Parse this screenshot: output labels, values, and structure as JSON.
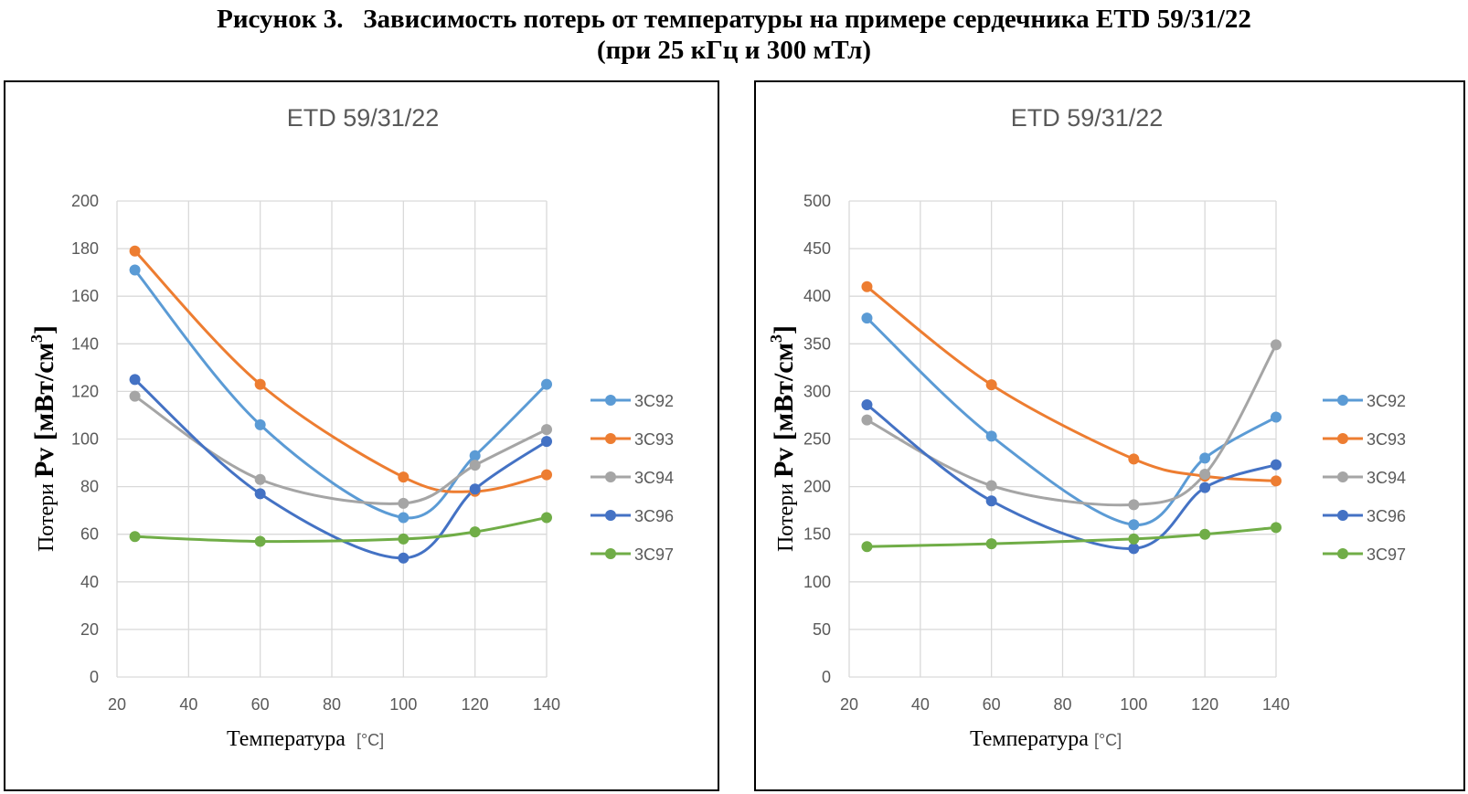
{
  "figure": {
    "title_line1": "Рисунок 3.   Зависимость потерь от температуры на примере сердечника ETD 59/31/22",
    "title_line2": "(при 25 кГц и 300 мТл)"
  },
  "chart_data": [
    {
      "type": "line",
      "title": "ETD 59/31/22",
      "xlabel_prefix": "Температура ",
      "xlabel_unit": "[°C]",
      "ylabel_small": "Потери",
      "ylabel_big": "Pv [мВт/см",
      "ylabel_sup": "3",
      "ylabel_end": "]",
      "xlim": [
        20,
        140
      ],
      "ylim": [
        0,
        200
      ],
      "xticks": [
        "20",
        "40",
        "60",
        "80",
        "100",
        "120",
        "140"
      ],
      "yticks": [
        "0",
        "20",
        "40",
        "60",
        "80",
        "100",
        "120",
        "140",
        "160",
        "180",
        "200"
      ],
      "grid": true,
      "legend_position": "right",
      "x": [
        25,
        60,
        100,
        120,
        140
      ],
      "series": [
        {
          "name": "3C92",
          "color": "#5B9BD5",
          "values": [
            171,
            106,
            67,
            93,
            123
          ]
        },
        {
          "name": "3C93",
          "color": "#ED7D31",
          "values": [
            179,
            123,
            84,
            78,
            85
          ]
        },
        {
          "name": "3C94",
          "color": "#A5A5A5",
          "values": [
            118,
            83,
            73,
            89,
            104
          ]
        },
        {
          "name": "3C96",
          "color": "#4472C4",
          "values": [
            125,
            77,
            50,
            79,
            99
          ]
        },
        {
          "name": "3C97",
          "color": "#70AD47",
          "values": [
            59,
            57,
            58,
            61,
            67
          ]
        }
      ]
    },
    {
      "type": "line",
      "title": "ETD 59/31/22",
      "xlabel_prefix": "Температура",
      "xlabel_unit": "[°C]",
      "ylabel_small": "Потери",
      "ylabel_big": "Pv [мВт/см",
      "ylabel_sup": "3",
      "ylabel_end": "]",
      "xlim": [
        20,
        140
      ],
      "ylim": [
        0,
        500
      ],
      "xticks": [
        "20",
        "40",
        "60",
        "80",
        "100",
        "120",
        "140"
      ],
      "yticks": [
        "0",
        "50",
        "100",
        "150",
        "200",
        "250",
        "300",
        "350",
        "400",
        "450",
        "500"
      ],
      "grid": true,
      "legend_position": "right",
      "x": [
        25,
        60,
        100,
        120,
        140
      ],
      "series": [
        {
          "name": "3C92",
          "color": "#5B9BD5",
          "values": [
            377,
            253,
            160,
            230,
            273
          ]
        },
        {
          "name": "3C93",
          "color": "#ED7D31",
          "values": [
            410,
            307,
            229,
            211,
            206
          ]
        },
        {
          "name": "3C94",
          "color": "#A5A5A5",
          "values": [
            270,
            201,
            181,
            213,
            349
          ]
        },
        {
          "name": "3C96",
          "color": "#4472C4",
          "values": [
            286,
            185,
            135,
            199,
            223
          ]
        },
        {
          "name": "3C97",
          "color": "#70AD47",
          "values": [
            137,
            140,
            145,
            150,
            157
          ]
        }
      ]
    }
  ]
}
